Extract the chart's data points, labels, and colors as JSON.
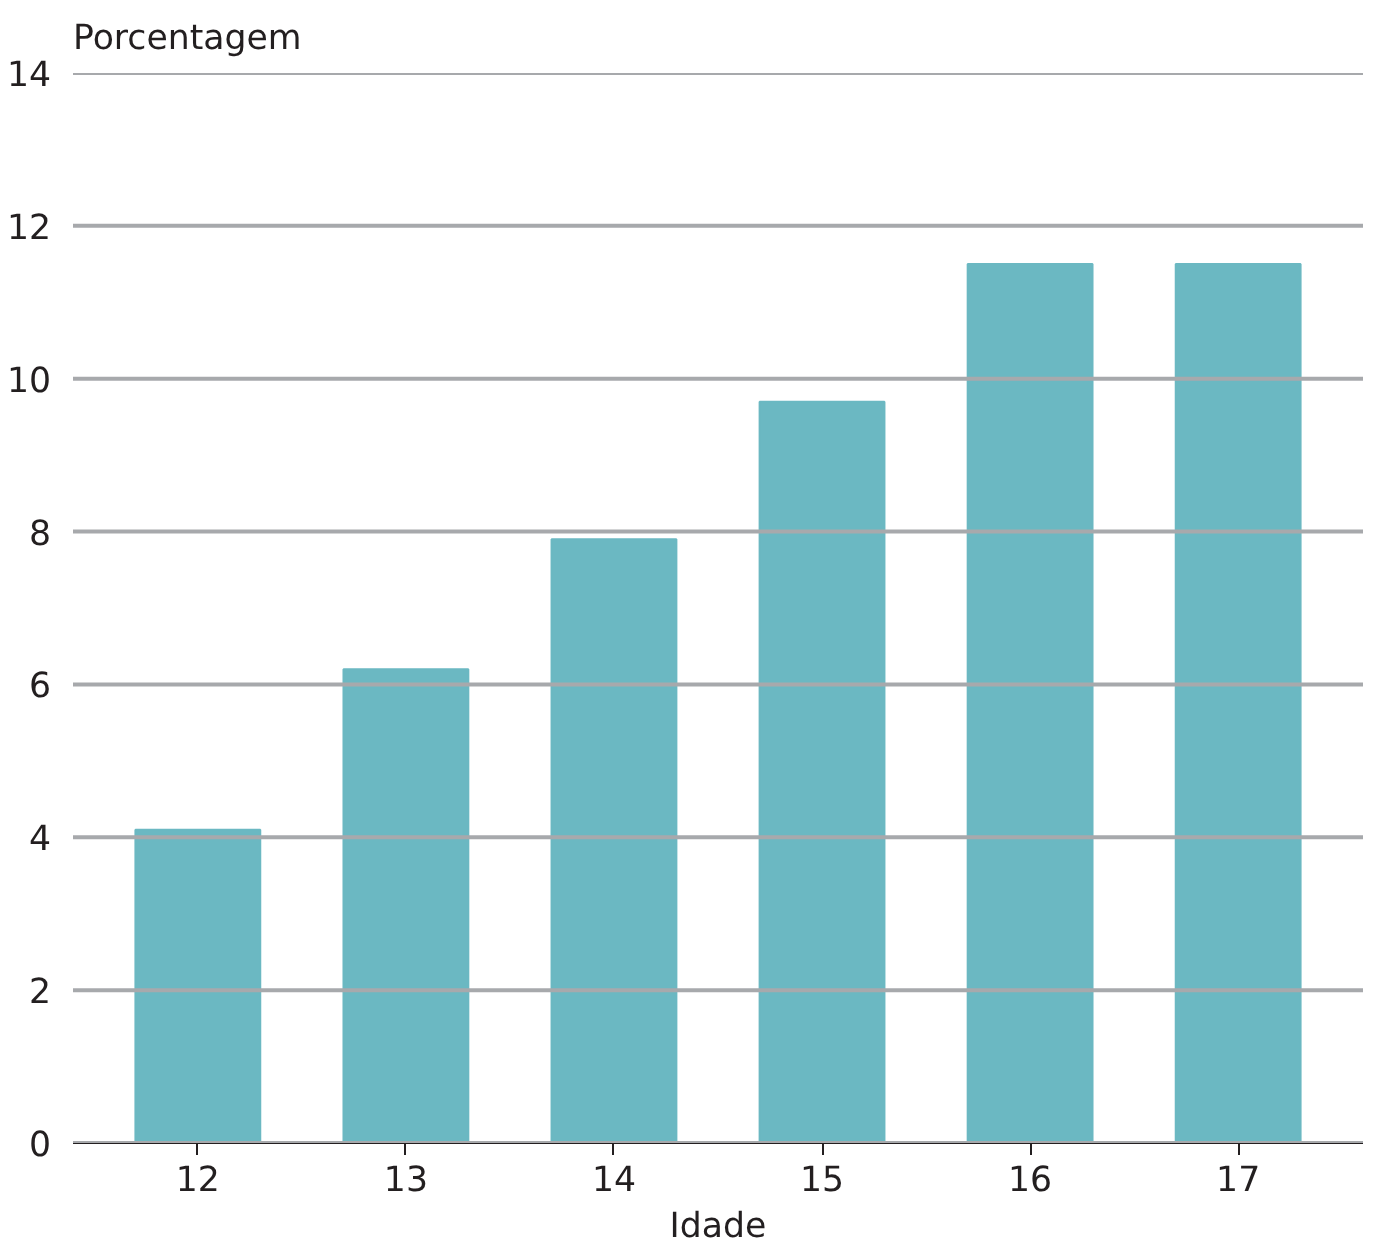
{
  "chart_data": {
    "type": "bar",
    "xlabel": "Idade",
    "ylabel": "Porcentagem",
    "categories": [
      "12",
      "13",
      "14",
      "15",
      "16",
      "17"
    ],
    "values": [
      4.1,
      6.2,
      7.9,
      9.7,
      11.5,
      11.5
    ],
    "color": "#6bb8c2",
    "ylim": [
      0,
      14
    ],
    "yticks": [
      0,
      2,
      4,
      6,
      8,
      10,
      12,
      14
    ],
    "grid": "y"
  }
}
